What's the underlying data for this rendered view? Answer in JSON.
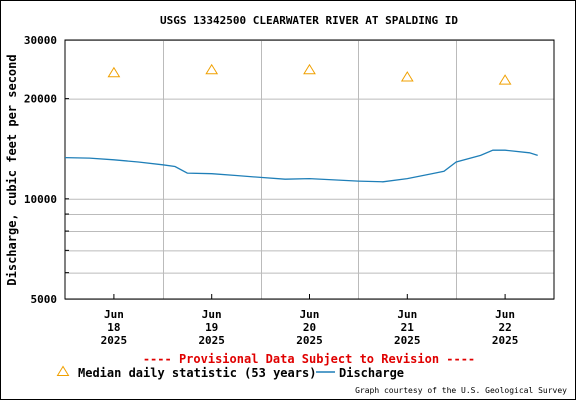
{
  "chart_data": {
    "type": "line",
    "title": "USGS 13342500 CLEARWATER RIVER AT SPALDING ID",
    "ylabel": "Discharge, cubic feet per second",
    "y_scale": "log",
    "ylim": [
      5000,
      30000
    ],
    "y_ticks": [
      {
        "value": 5000,
        "label": "5000"
      },
      {
        "value": 10000,
        "label": "10000"
      },
      {
        "value": 20000,
        "label": "20000"
      },
      {
        "value": 30000,
        "label": "30000"
      }
    ],
    "y_minor_grid": [
      6000,
      7000,
      8000,
      9000
    ],
    "xlim": [
      "2025-06-17T12:00",
      "2025-06-22T12:00"
    ],
    "x_ticks": [
      {
        "value": "2025-06-18T00:00",
        "month": "Jun",
        "day": "18",
        "year": "2025"
      },
      {
        "value": "2025-06-19T00:00",
        "month": "Jun",
        "day": "19",
        "year": "2025"
      },
      {
        "value": "2025-06-20T00:00",
        "month": "Jun",
        "day": "20",
        "year": "2025"
      },
      {
        "value": "2025-06-21T00:00",
        "month": "Jun",
        "day": "21",
        "year": "2025"
      },
      {
        "value": "2025-06-22T00:00",
        "month": "Jun",
        "day": "22",
        "year": "2025"
      }
    ],
    "x_grid_lines": [
      "2025-06-18T12:00",
      "2025-06-19T12:00",
      "2025-06-20T12:00",
      "2025-06-21T12:00"
    ],
    "series": [
      {
        "name": "Discharge",
        "color": "#1f7fb8",
        "points": [
          {
            "x": "2025-06-17T12:00",
            "y": 13300
          },
          {
            "x": "2025-06-17T18:00",
            "y": 13250
          },
          {
            "x": "2025-06-18T00:00",
            "y": 13100
          },
          {
            "x": "2025-06-18T06:00",
            "y": 12900
          },
          {
            "x": "2025-06-18T12:00",
            "y": 12650
          },
          {
            "x": "2025-06-18T15:00",
            "y": 12500
          },
          {
            "x": "2025-06-18T18:00",
            "y": 11950
          },
          {
            "x": "2025-06-19T00:00",
            "y": 11900
          },
          {
            "x": "2025-06-19T06:00",
            "y": 11750
          },
          {
            "x": "2025-06-19T12:00",
            "y": 11600
          },
          {
            "x": "2025-06-19T18:00",
            "y": 11450
          },
          {
            "x": "2025-06-20T00:00",
            "y": 11500
          },
          {
            "x": "2025-06-20T06:00",
            "y": 11400
          },
          {
            "x": "2025-06-20T12:00",
            "y": 11300
          },
          {
            "x": "2025-06-20T18:00",
            "y": 11250
          },
          {
            "x": "2025-06-21T00:00",
            "y": 11500
          },
          {
            "x": "2025-06-21T06:00",
            "y": 11900
          },
          {
            "x": "2025-06-21T09:00",
            "y": 12100
          },
          {
            "x": "2025-06-21T12:00",
            "y": 12900
          },
          {
            "x": "2025-06-21T18:00",
            "y": 13500
          },
          {
            "x": "2025-06-21T21:00",
            "y": 14000
          },
          {
            "x": "2025-06-22T00:00",
            "y": 14000
          },
          {
            "x": "2025-06-22T06:00",
            "y": 13750
          },
          {
            "x": "2025-06-22T08:00",
            "y": 13500
          }
        ]
      },
      {
        "name": "Median daily statistic (53 years)",
        "marker": "triangle",
        "color": "#f0a000",
        "points": [
          {
            "x": "2025-06-18T00:00",
            "y": 24000
          },
          {
            "x": "2025-06-19T00:00",
            "y": 24500
          },
          {
            "x": "2025-06-20T00:00",
            "y": 24500
          },
          {
            "x": "2025-06-21T00:00",
            "y": 23300
          },
          {
            "x": "2025-06-22T00:00",
            "y": 22800
          }
        ]
      }
    ],
    "grid": true,
    "legend_position": "bottom"
  },
  "provisional_notice": "---- Provisional Data Subject to Revision ----",
  "legend": {
    "median_label": "Median daily statistic (53 years)",
    "discharge_label": "Discharge"
  },
  "credit": "Graph courtesy of the U.S. Geological Survey"
}
